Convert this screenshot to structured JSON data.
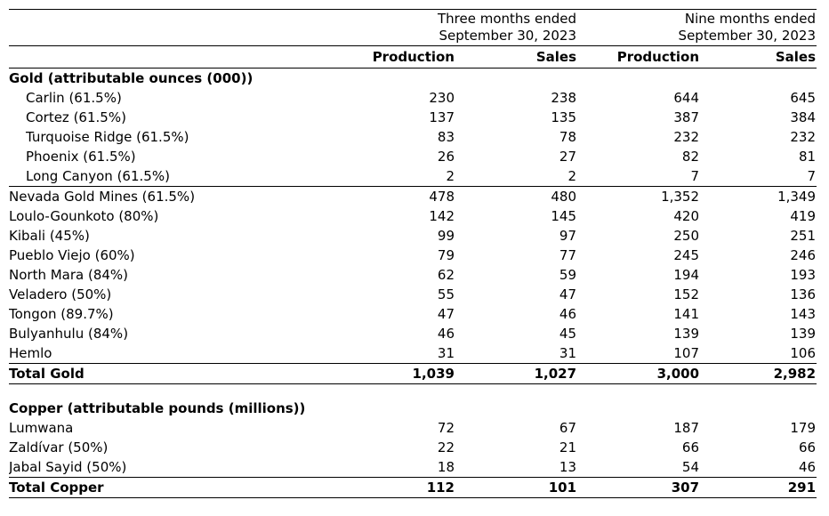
{
  "header": {
    "groups": [
      {
        "line1": "Three months ended",
        "line2": "September 30, 2023"
      },
      {
        "line1": "Nine months ended",
        "line2": "September 30, 2023"
      }
    ],
    "columns": [
      "Production",
      "Sales",
      "Production",
      "Sales"
    ]
  },
  "sections": [
    {
      "title": "Gold (attributable ounces (000))",
      "rows": [
        {
          "label": "Carlin (61.5%)",
          "values": [
            "230",
            "238",
            "644",
            "645"
          ]
        },
        {
          "label": "Cortez (61.5%)",
          "values": [
            "137",
            "135",
            "387",
            "384"
          ]
        },
        {
          "label": "Turquoise Ridge (61.5%)",
          "values": [
            "83",
            "78",
            "232",
            "232"
          ]
        },
        {
          "label": "Phoenix (61.5%)",
          "values": [
            "26",
            "27",
            "82",
            "81"
          ]
        },
        {
          "label": "Long Canyon (61.5%)",
          "values": [
            "2",
            "2",
            "7",
            "7"
          ]
        },
        {
          "label": "Nevada Gold Mines (61.5%)",
          "values": [
            "478",
            "480",
            "1,352",
            "1,349"
          ]
        },
        {
          "label": "Loulo-Gounkoto (80%)",
          "values": [
            "142",
            "145",
            "420",
            "419"
          ]
        },
        {
          "label": "Kibali (45%)",
          "values": [
            "99",
            "97",
            "250",
            "251"
          ]
        },
        {
          "label": "Pueblo Viejo (60%)",
          "values": [
            "79",
            "77",
            "245",
            "246"
          ]
        },
        {
          "label": "North Mara (84%)",
          "values": [
            "62",
            "59",
            "194",
            "193"
          ]
        },
        {
          "label": "Veladero (50%)",
          "values": [
            "55",
            "47",
            "152",
            "136"
          ]
        },
        {
          "label": "Tongon (89.7%)",
          "values": [
            "47",
            "46",
            "141",
            "143"
          ]
        },
        {
          "label": "Bulyanhulu (84%)",
          "values": [
            "46",
            "45",
            "139",
            "139"
          ]
        },
        {
          "label": "Hemlo",
          "values": [
            "31",
            "31",
            "107",
            "106"
          ]
        }
      ],
      "total": {
        "label": "Total Gold",
        "values": [
          "1,039",
          "1,027",
          "3,000",
          "2,982"
        ]
      }
    },
    {
      "title": "Copper (attributable pounds (millions))",
      "rows": [
        {
          "label": "Lumwana",
          "values": [
            "72",
            "67",
            "187",
            "179"
          ]
        },
        {
          "label": "Zaldívar (50%)",
          "values": [
            "22",
            "21",
            "66",
            "66"
          ]
        },
        {
          "label": "Jabal Sayid (50%)",
          "values": [
            "18",
            "13",
            "54",
            "46"
          ]
        }
      ],
      "total": {
        "label": "Total Copper",
        "values": [
          "112",
          "101",
          "307",
          "291"
        ]
      }
    }
  ]
}
